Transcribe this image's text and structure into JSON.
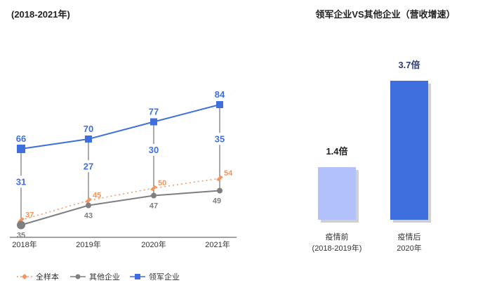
{
  "left_chart": {
    "type": "line",
    "title": "(2018-2021年)",
    "categories": [
      "2018年",
      "2019年",
      "2020年",
      "2021年"
    ],
    "series": [
      {
        "name": "领军企业",
        "values": [
          66,
          70,
          77,
          84
        ],
        "color": "#3f6fdf",
        "marker": "square",
        "style": "solid"
      },
      {
        "name": "全样本",
        "values": [
          37,
          45,
          50,
          54
        ],
        "color": "#f4955e",
        "marker": "diamond",
        "style": "dotted"
      },
      {
        "name": "其他企业",
        "values": [
          35,
          43,
          47,
          49
        ],
        "color": "#7f7f7f",
        "marker": "circle",
        "style": "solid"
      }
    ],
    "gaps": [
      31,
      27,
      30,
      35
    ],
    "legend_position": "bottom-left"
  },
  "right_chart": {
    "type": "bar",
    "title": "领军企业VS其他企业（营收增速）",
    "bars": [
      {
        "value": 1.4,
        "label": "1.4倍",
        "category_line1": "疫情前",
        "category_line2": "(2018-2019年)",
        "color": "#b3c1fb"
      },
      {
        "value": 3.7,
        "label": "3.7倍",
        "category_line1": "疫情后",
        "category_line2": "2020年",
        "color": "#3f6fdf"
      }
    ],
    "label_colors": {
      "first": "#222222",
      "second": "#2b3a7a"
    }
  }
}
